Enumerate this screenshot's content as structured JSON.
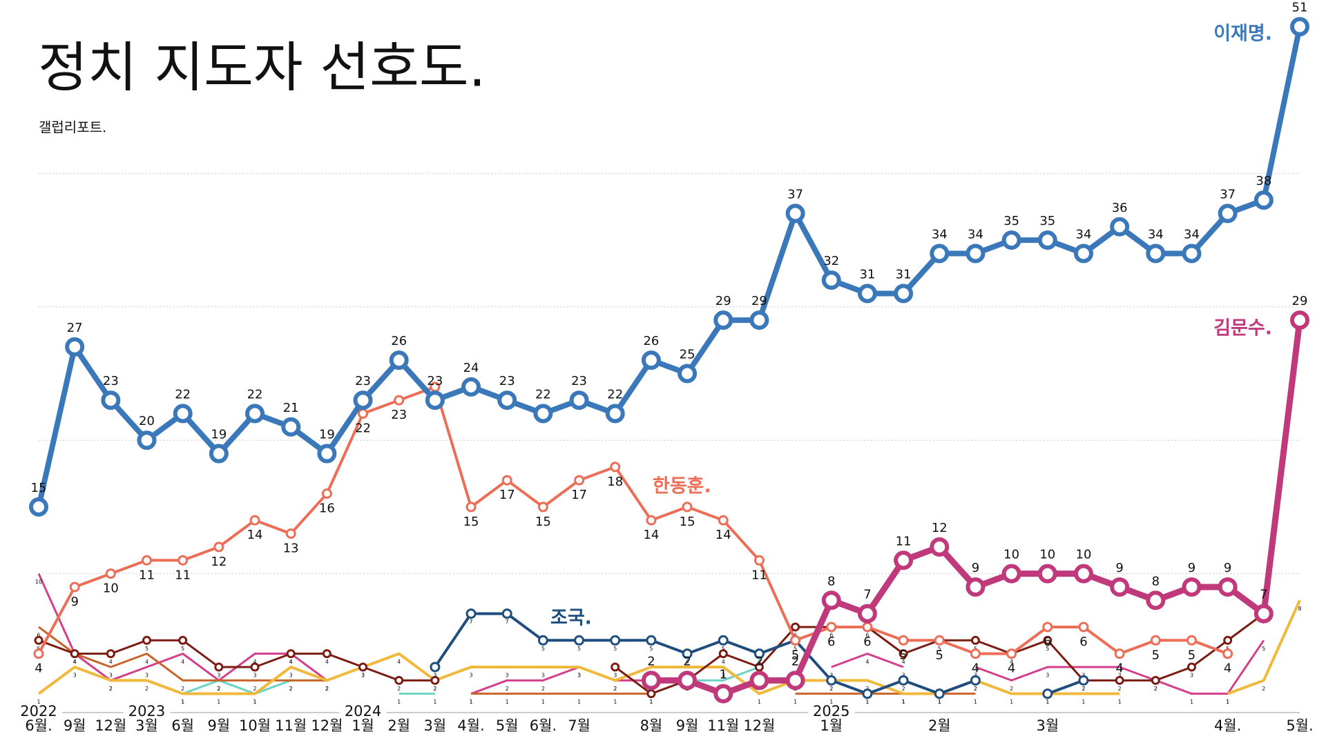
{
  "chart_data": {
    "type": "line",
    "title": "정치 지도자 선호도.",
    "subtitle": "갤럽리포트.",
    "categories": [
      "6월.",
      "9월",
      "12월",
      "3월",
      "6월",
      "9월",
      "10월",
      "11월",
      "12월",
      "1월",
      "2월",
      "3월",
      "4월.",
      "5월",
      "6월.",
      "7월",
      null,
      "8월",
      "9월",
      "11월",
      "12월",
      null,
      "1월",
      null,
      null,
      "2월",
      null,
      null,
      "3월",
      null,
      null,
      null,
      null,
      "4월.",
      null,
      "5월."
    ],
    "years": [
      "2022",
      null,
      null,
      "2023",
      null,
      null,
      null,
      null,
      null,
      "2024",
      null,
      null,
      null,
      null,
      null,
      null,
      null,
      null,
      null,
      null,
      null,
      null,
      "2025",
      null,
      null,
      null,
      null,
      null,
      null,
      null,
      null,
      null,
      null,
      null,
      null,
      null
    ],
    "ylim": [
      0,
      53
    ],
    "gridlines": [
      10,
      20,
      30,
      40
    ],
    "series": [
      {
        "name": "이재명.",
        "color": "#3a78b9",
        "width": 8,
        "labels": "above",
        "values": [
          15,
          27,
          23,
          20,
          22,
          19,
          22,
          21,
          19,
          23,
          26,
          23,
          24,
          23,
          22,
          23,
          22,
          26,
          25,
          29,
          29,
          37,
          32,
          31,
          31,
          34,
          34,
          35,
          35,
          34,
          36,
          34,
          34,
          37,
          38,
          51
        ]
      },
      {
        "name": "김문수.",
        "color": "#c0397a",
        "width": 9,
        "labels": "above",
        "values": [
          null,
          null,
          null,
          null,
          null,
          null,
          null,
          null,
          null,
          null,
          null,
          null,
          null,
          null,
          null,
          null,
          null,
          2,
          2,
          1,
          2,
          2,
          8,
          7,
          11,
          12,
          9,
          10,
          10,
          10,
          9,
          8,
          9,
          9,
          7,
          29
        ]
      },
      {
        "name": "한동훈.",
        "color": "#ec6e57",
        "width": 4,
        "labels": "below",
        "values": [
          4,
          9,
          10,
          11,
          11,
          12,
          14,
          13,
          16,
          22,
          23,
          24,
          15,
          17,
          15,
          17,
          18,
          14,
          15,
          14,
          11,
          5,
          6,
          6,
          5,
          5,
          4,
          4,
          6,
          6,
          4,
          5,
          5,
          4,
          null,
          null
        ]
      },
      {
        "name": "조국.",
        "color": "#1f4e7e",
        "width": 4,
        "values": [
          null,
          null,
          null,
          null,
          null,
          null,
          null,
          null,
          null,
          null,
          null,
          3,
          7,
          7,
          5,
          5,
          5,
          5,
          4,
          5,
          4,
          5,
          2,
          1,
          2,
          1,
          2,
          null,
          1,
          2,
          null,
          null,
          null,
          null,
          null,
          null
        ]
      },
      {
        "color": "#7a1c12",
        "width": 3,
        "values": [
          5,
          4,
          4,
          5,
          5,
          3,
          3,
          4,
          4,
          3,
          2,
          2,
          null,
          null,
          null,
          null,
          3,
          1,
          2,
          4,
          3,
          6,
          6,
          6,
          4,
          5,
          5,
          4,
          5,
          2,
          2,
          2,
          3,
          5,
          7,
          null
        ]
      },
      {
        "color": "#f0b93b",
        "width": 4,
        "values": [
          1,
          3,
          2,
          2,
          1,
          1,
          1,
          3,
          2,
          3,
          4,
          2,
          3,
          3,
          3,
          3,
          2,
          3,
          3,
          3,
          1,
          2,
          2,
          2,
          1,
          1,
          2,
          1,
          1,
          1,
          1,
          null,
          null,
          1,
          2,
          8
        ]
      },
      {
        "color": "#c8632a",
        "width": 3,
        "values": [
          6,
          4,
          3,
          4,
          2,
          2,
          2,
          2,
          2,
          null,
          null,
          null,
          1,
          1,
          1,
          1,
          1,
          1,
          null,
          null,
          null,
          1,
          1,
          1,
          1,
          1,
          1,
          null,
          null,
          null,
          null,
          null,
          null,
          null,
          null,
          null
        ]
      },
      {
        "color": "#6ad3c4",
        "width": 3,
        "values": [
          null,
          null,
          null,
          null,
          1,
          2,
          1,
          2,
          2,
          null,
          1,
          1,
          null,
          null,
          null,
          null,
          null,
          null,
          2,
          2,
          3,
          null,
          null,
          null,
          1,
          1,
          null,
          null,
          null,
          null,
          null,
          null,
          null,
          null,
          null,
          null
        ]
      },
      {
        "color": "#d33f8a",
        "width": 3,
        "values": [
          10,
          4,
          2,
          3,
          4,
          2,
          4,
          4,
          2,
          null,
          null,
          null,
          1,
          2,
          2,
          3,
          2,
          2,
          null,
          null,
          null,
          null,
          3,
          4,
          3,
          null,
          3,
          2,
          3,
          3,
          3,
          2,
          1,
          1,
          5,
          null
        ]
      }
    ]
  }
}
